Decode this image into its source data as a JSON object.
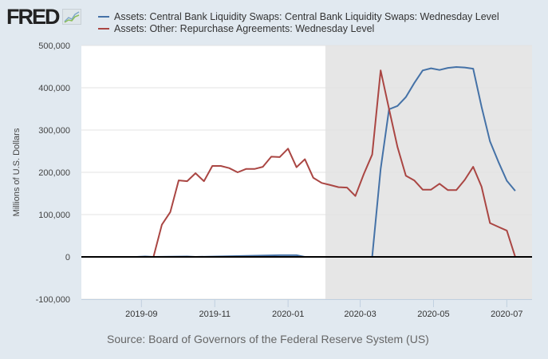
{
  "header": {
    "logo_text": "FRED",
    "logo_icon": "chart-line-icon"
  },
  "source": "Source: Board of Governors of the Federal Reserve System (US)",
  "colors": {
    "series1": "#4572a7",
    "series2": "#aa4643",
    "recession": "#e6e6e6",
    "plot_bg": "#ffffff",
    "page_bg": "#e1e9f0"
  },
  "chart_data": {
    "type": "line",
    "title": "",
    "xlabel": "",
    "ylabel": "Millions of U.S. Dollars",
    "ylim": [
      -100000,
      500000
    ],
    "yticks": [
      500000,
      400000,
      300000,
      200000,
      100000,
      0,
      -100000
    ],
    "ytick_labels": [
      "500,000",
      "400,000",
      "300,000",
      "200,000",
      "100,000",
      "0",
      "-100,000"
    ],
    "xlim": [
      "2019-07-13",
      "2020-07-22"
    ],
    "xticks": [
      "2019-09-01",
      "2019-11-01",
      "2020-01-01",
      "2020-03-01",
      "2020-05-01",
      "2020-07-01"
    ],
    "xtick_labels": [
      "2019-09",
      "2019-11",
      "2020-01",
      "2020-03",
      "2020-05",
      "2020-07"
    ],
    "grid": true,
    "legend_position": "top-left",
    "recession_shading": {
      "start": "2020-02-01",
      "end": "2020-07-22"
    },
    "series": [
      {
        "name": "Assets: Central Bank Liquidity Swaps: Central Bank Liquidity Swaps: Wednesday Level",
        "color": "#4572a7",
        "points": [
          [
            "2019-07-17",
            0
          ],
          [
            "2019-08-28",
            0
          ],
          [
            "2019-09-04",
            1000
          ],
          [
            "2019-09-11",
            0
          ],
          [
            "2019-10-09",
            1000
          ],
          [
            "2019-10-16",
            0
          ],
          [
            "2019-12-25",
            4000
          ],
          [
            "2020-01-08",
            4000
          ],
          [
            "2020-01-15",
            0
          ],
          [
            "2020-03-11",
            0
          ],
          [
            "2020-03-18",
            208000
          ],
          [
            "2020-03-25",
            349000
          ],
          [
            "2020-04-01",
            357000
          ],
          [
            "2020-04-08",
            378000
          ],
          [
            "2020-04-15",
            411000
          ],
          [
            "2020-04-22",
            441000
          ],
          [
            "2020-04-29",
            446000
          ],
          [
            "2020-05-06",
            442000
          ],
          [
            "2020-05-13",
            447000
          ],
          [
            "2020-05-20",
            449000
          ],
          [
            "2020-05-27",
            448000
          ],
          [
            "2020-06-03",
            445000
          ],
          [
            "2020-06-10",
            355000
          ],
          [
            "2020-06-17",
            273000
          ],
          [
            "2020-06-24",
            225000
          ],
          [
            "2020-07-01",
            180000
          ],
          [
            "2020-07-08",
            156000
          ]
        ]
      },
      {
        "name": "Assets: Other: Repurchase Agreements: Wednesday Level",
        "color": "#aa4643",
        "points": [
          [
            "2019-07-17",
            0
          ],
          [
            "2019-09-11",
            0
          ],
          [
            "2019-09-18",
            76000
          ],
          [
            "2019-09-25",
            106000
          ],
          [
            "2019-10-02",
            181000
          ],
          [
            "2019-10-09",
            179000
          ],
          [
            "2019-10-16",
            198000
          ],
          [
            "2019-10-23",
            179000
          ],
          [
            "2019-10-30",
            215000
          ],
          [
            "2019-11-06",
            215000
          ],
          [
            "2019-11-13",
            210000
          ],
          [
            "2019-11-20",
            200000
          ],
          [
            "2019-11-27",
            208000
          ],
          [
            "2019-12-04",
            208000
          ],
          [
            "2019-12-11",
            213000
          ],
          [
            "2019-12-18",
            237000
          ],
          [
            "2019-12-25",
            236000
          ],
          [
            "2020-01-01",
            256000
          ],
          [
            "2020-01-08",
            212000
          ],
          [
            "2020-01-15",
            231000
          ],
          [
            "2020-01-22",
            187000
          ],
          [
            "2020-01-29",
            175000
          ],
          [
            "2020-02-05",
            170000
          ],
          [
            "2020-02-12",
            165000
          ],
          [
            "2020-02-19",
            164000
          ],
          [
            "2020-02-26",
            144000
          ],
          [
            "2020-03-04",
            196000
          ],
          [
            "2020-03-11",
            242000
          ],
          [
            "2020-03-18",
            441000
          ],
          [
            "2020-03-25",
            350000
          ],
          [
            "2020-04-01",
            260000
          ],
          [
            "2020-04-08",
            192000
          ],
          [
            "2020-04-15",
            181000
          ],
          [
            "2020-04-22",
            159000
          ],
          [
            "2020-04-29",
            159000
          ],
          [
            "2020-05-06",
            173000
          ],
          [
            "2020-05-13",
            158000
          ],
          [
            "2020-05-20",
            158000
          ],
          [
            "2020-05-27",
            182000
          ],
          [
            "2020-06-03",
            213000
          ],
          [
            "2020-06-10",
            166000
          ],
          [
            "2020-06-17",
            80000
          ],
          [
            "2020-06-24",
            71000
          ],
          [
            "2020-07-01",
            62000
          ],
          [
            "2020-07-08",
            0
          ]
        ]
      }
    ]
  }
}
